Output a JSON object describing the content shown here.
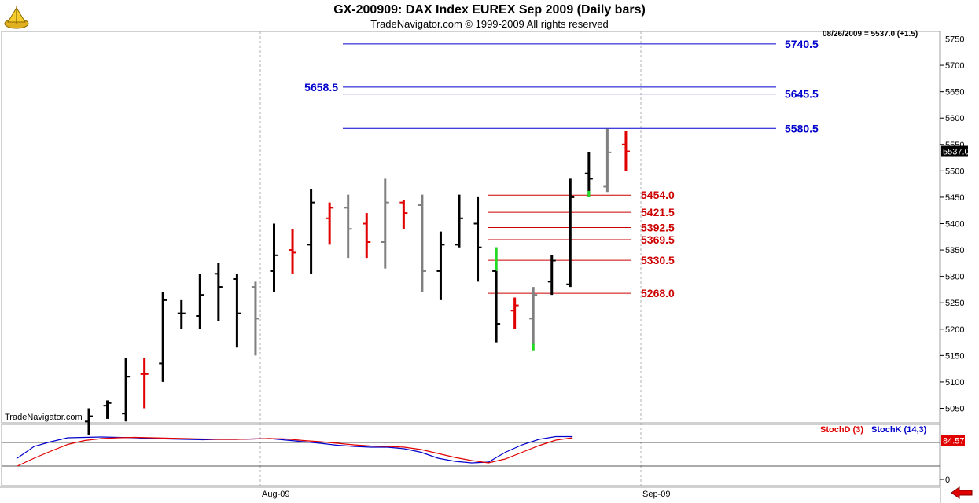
{
  "header": {
    "title": "GX-200909:  DAX Index EUREX Sep 2009  (Daily bars)",
    "subtitle": "TradeNavigator.com © 1999-2009 All rights reserved",
    "last_quote": "08/26/2009 = 5537.0 (+1.5)",
    "watermark": "TradeNavigator.com"
  },
  "colors": {
    "up": "#000000",
    "down": "#e00000",
    "neutral": "#808080",
    "limit": "#22dd22",
    "resistance": "#0000cc",
    "support": "#cc0000",
    "stochD": "#e00000",
    "stochK": "#0000cc"
  },
  "chart_data": [
    {
      "type": "ohlc",
      "ylim": [
        5020,
        5770
      ],
      "y_ticks": [
        5050,
        5100,
        5150,
        5200,
        5250,
        5300,
        5350,
        5400,
        5450,
        5500,
        5550,
        5600,
        5650,
        5700,
        5750
      ],
      "x_tick_labels": [
        "Aug-09",
        "Sep-09"
      ],
      "last_price": "5537.0",
      "bars": [
        {
          "o": 5025,
          "h": 5050,
          "l": 5000,
          "c": 5035,
          "col": "up"
        },
        {
          "o": 5055,
          "h": 5065,
          "l": 5030,
          "c": 5060,
          "col": "up"
        },
        {
          "o": 5040,
          "h": 5145,
          "l": 5025,
          "c": 5110,
          "col": "up"
        },
        {
          "o": 5115,
          "h": 5145,
          "l": 5050,
          "c": 5115,
          "col": "down"
        },
        {
          "o": 5135,
          "h": 5270,
          "l": 5100,
          "c": 5255,
          "col": "up"
        },
        {
          "o": 5230,
          "h": 5255,
          "l": 5200,
          "c": 5230,
          "col": "up"
        },
        {
          "o": 5225,
          "h": 5305,
          "l": 5200,
          "c": 5265,
          "col": "up"
        },
        {
          "o": 5305,
          "h": 5325,
          "l": 5215,
          "c": 5280,
          "col": "up"
        },
        {
          "o": 5295,
          "h": 5305,
          "l": 5165,
          "c": 5230,
          "col": "up"
        },
        {
          "o": 5280,
          "h": 5290,
          "l": 5150,
          "c": 5220,
          "col": "neutral"
        },
        {
          "o": 5310,
          "h": 5400,
          "l": 5270,
          "c": 5340,
          "col": "up"
        },
        {
          "o": 5350,
          "h": 5390,
          "l": 5305,
          "c": 5345,
          "col": "down"
        },
        {
          "o": 5360,
          "h": 5465,
          "l": 5305,
          "c": 5440,
          "col": "up"
        },
        {
          "o": 5410,
          "h": 5440,
          "l": 5360,
          "c": 5430,
          "col": "down"
        },
        {
          "o": 5430,
          "h": 5455,
          "l": 5335,
          "c": 5390,
          "col": "neutral"
        },
        {
          "o": 5400,
          "h": 5420,
          "l": 5335,
          "c": 5365,
          "col": "down"
        },
        {
          "o": 5365,
          "h": 5485,
          "l": 5315,
          "c": 5440,
          "col": "neutral"
        },
        {
          "o": 5440,
          "h": 5445,
          "l": 5390,
          "c": 5420,
          "col": "down"
        },
        {
          "o": 5435,
          "h": 5455,
          "l": 5270,
          "c": 5310,
          "col": "neutral"
        },
        {
          "o": 5310,
          "h": 5385,
          "l": 5255,
          "c": 5360,
          "col": "up"
        },
        {
          "o": 5360,
          "h": 5455,
          "l": 5355,
          "c": 5410,
          "col": "up"
        },
        {
          "o": 5400,
          "h": 5450,
          "l": 5290,
          "c": 5355,
          "col": "up"
        },
        {
          "o": 5310,
          "h": 5355,
          "l": 5175,
          "c": 5210,
          "col": "limit_up"
        },
        {
          "o": 5235,
          "h": 5260,
          "l": 5200,
          "c": 5245,
          "col": "down"
        },
        {
          "o": 5220,
          "h": 5280,
          "l": 5160,
          "c": 5265,
          "col": "neutral_low"
        },
        {
          "o": 5290,
          "h": 5340,
          "l": 5265,
          "c": 5330,
          "col": "up"
        },
        {
          "o": 5285,
          "h": 5485,
          "l": 5280,
          "c": 5450,
          "col": "up"
        },
        {
          "o": 5495,
          "h": 5535,
          "l": 5450,
          "c": 5485,
          "col": "up_green_low"
        },
        {
          "o": 5470,
          "h": 5580,
          "l": 5460,
          "c": 5535,
          "col": "neutral"
        },
        {
          "o": 5550,
          "h": 5575,
          "l": 5500,
          "c": 5537,
          "col": "down"
        }
      ],
      "resistance_lines": [
        {
          "value": 5740.5,
          "label": "5740.5"
        },
        {
          "value": 5658.5,
          "label": "5658.5",
          "left_label": true
        },
        {
          "value": 5645.5,
          "label": "5645.5"
        },
        {
          "value": 5580.5,
          "label": "5580.5"
        }
      ],
      "support_lines": [
        {
          "value": 5454.0,
          "label": "5454.0"
        },
        {
          "value": 5421.5,
          "label": "5421.5"
        },
        {
          "value": 5392.5,
          "label": "5392.5"
        },
        {
          "value": 5369.5,
          "label": "5369.5"
        },
        {
          "value": 5330.5,
          "label": "5330.5"
        },
        {
          "value": 5268.0,
          "label": "5268.0"
        }
      ]
    },
    {
      "type": "line",
      "legend": [
        {
          "name": "StochD (3)",
          "color_key": "stochD"
        },
        {
          "name": "StochK (14,3)",
          "color_key": "stochK"
        }
      ],
      "y_ticks": [
        0
      ],
      "guide_levels": [
        20,
        80
      ],
      "last_value": "84.57",
      "series": [
        {
          "name": "StochK (14,3)",
          "values": [
            40,
            70,
            82,
            92,
            93,
            94,
            93,
            92,
            90,
            89,
            88,
            87,
            88,
            88,
            89,
            90,
            86,
            82,
            78,
            73,
            70,
            68,
            68,
            64,
            55,
            40,
            32,
            28,
            30,
            55,
            74,
            88,
            95,
            95
          ]
        },
        {
          "name": "StochD (3)",
          "values": [
            20,
            40,
            58,
            75,
            85,
            90,
            92,
            93,
            92,
            91,
            90,
            89,
            88,
            88,
            89,
            90,
            89,
            85,
            82,
            78,
            74,
            71,
            70,
            68,
            62,
            52,
            42,
            34,
            28,
            38,
            55,
            72,
            86,
            92
          ]
        }
      ]
    }
  ]
}
